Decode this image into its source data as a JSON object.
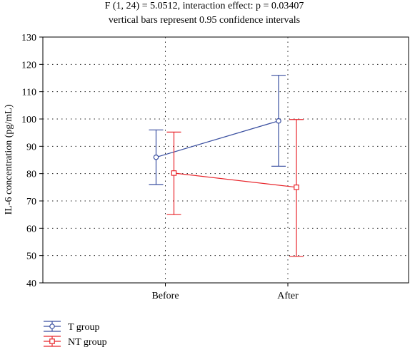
{
  "chart_data": {
    "type": "line",
    "title_lines": [
      "F (1, 24) = 5.0512, interaction effect: p = 0.03407",
      "vertical bars represent 0.95 confidence intervals"
    ],
    "ylabel": "IL-6 concentration (pg/mL)",
    "xlabel": "",
    "categories": [
      "Before",
      "After"
    ],
    "ylim": [
      40,
      130
    ],
    "yticks": [
      40,
      50,
      60,
      70,
      80,
      90,
      100,
      110,
      120,
      130
    ],
    "grid": true,
    "legend_position": "bottom-left",
    "series": [
      {
        "name": "T group",
        "color": "#3a4fa0",
        "marker": "circle",
        "values": [
          86,
          99.3
        ],
        "ci_low": [
          76,
          82.7
        ],
        "ci_high": [
          96,
          116
        ]
      },
      {
        "name": "NT group",
        "color": "#e8262c",
        "marker": "square",
        "values": [
          80.2,
          75
        ],
        "ci_low": [
          65,
          49.7
        ],
        "ci_high": [
          95.2,
          99.8
        ]
      }
    ]
  }
}
